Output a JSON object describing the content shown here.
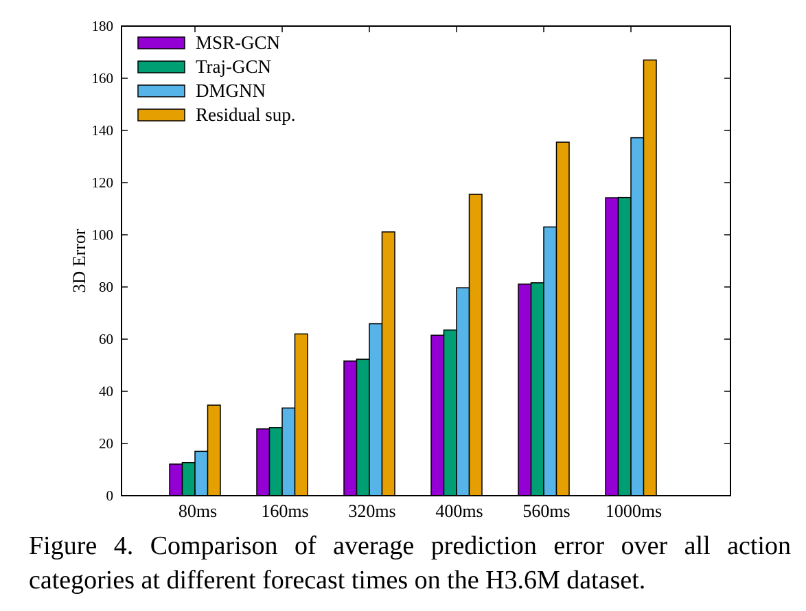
{
  "chart_data": {
    "type": "bar",
    "categories": [
      "80ms",
      "160ms",
      "320ms",
      "400ms",
      "560ms",
      "1000ms"
    ],
    "series": [
      {
        "name": "MSR-GCN",
        "color": "#9400d3",
        "values": [
          12.1,
          25.6,
          51.6,
          61.5,
          81.1,
          114.2
        ]
      },
      {
        "name": "Traj-GCN",
        "color": "#009e73",
        "values": [
          12.7,
          26.1,
          52.3,
          63.5,
          81.6,
          114.3
        ]
      },
      {
        "name": "DMGNN",
        "color": "#56b4e9",
        "values": [
          17.0,
          33.6,
          65.9,
          79.7,
          103.0,
          137.2
        ]
      },
      {
        "name": "Residual sup.",
        "color": "#e69f00",
        "values": [
          34.7,
          62.0,
          101.1,
          115.5,
          135.5,
          167.0
        ]
      }
    ],
    "ylabel": "3D Error",
    "xlabel": "",
    "ylim": [
      0,
      180
    ],
    "yticks": [
      "0",
      "20",
      "40",
      "60",
      "80",
      "100",
      "120",
      "140",
      "160",
      "180"
    ],
    "legend_position": "top-left",
    "grid": false
  },
  "caption": "Figure 4. Comparison of average prediction error over all action categories at different forecast times on the H3.6M dataset."
}
